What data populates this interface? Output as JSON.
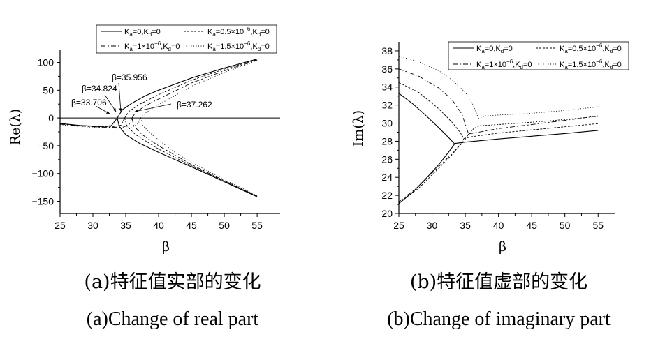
{
  "chart_data": [
    {
      "type": "line",
      "ylabel": "Re(λ)",
      "xlabel": "β",
      "xlim": [
        25,
        58.5
      ],
      "ylim": [
        -172,
        122
      ],
      "xticks": [
        "25",
        "30",
        "35",
        "40",
        "45",
        "50",
        "55"
      ],
      "yticks": [
        "100",
        "50",
        "0",
        "-50",
        "-100",
        "-150"
      ],
      "zero_line": true,
      "grid": false,
      "legend_position": "top",
      "caption_zh": "(a)特征值实部的变化",
      "caption_en": "(a)Change of real part",
      "annotations": [
        {
          "text": "β=33.706",
          "x": 33.706,
          "y": 0
        },
        {
          "text": "β=34.824",
          "x": 34.824,
          "y": 0
        },
        {
          "text": "β=35.956",
          "x": 35.956,
          "y": 0
        },
        {
          "text": "β=37.262",
          "x": 37.262,
          "y": 0
        }
      ],
      "series": [
        {
          "name": "Ka=0,Kd=0",
          "branches": [
            {
              "x": [
                25,
                28,
                31,
                32.8,
                33.706
              ],
              "y": [
                -10,
                -13.5,
                -15.5,
                -14,
                0
              ]
            },
            {
              "x": [
                33.706,
                34.5,
                36,
                38,
                40,
                45,
                50,
                55
              ],
              "y": [
                0,
                15,
                27,
                40,
                50,
                72,
                90,
                106
              ]
            },
            {
              "x": [
                33.706,
                34,
                35,
                37,
                40,
                45,
                50,
                55
              ],
              "y": [
                0,
                -15,
                -30,
                -45,
                -62,
                -88,
                -115,
                -142
              ]
            }
          ]
        },
        {
          "name": "Ka=0.5×10-6,Kd=0",
          "branches": [
            {
              "x": [
                25,
                28,
                31,
                33,
                34.3,
                34.824
              ],
              "y": [
                -10,
                -13.5,
                -15.5,
                -16,
                -13,
                0
              ]
            },
            {
              "x": [
                34.824,
                35.5,
                37,
                40,
                45,
                50,
                55
              ],
              "y": [
                0,
                12,
                24,
                42,
                68,
                88,
                105
              ]
            },
            {
              "x": [
                34.824,
                35.2,
                36.5,
                40,
                45,
                50,
                55
              ],
              "y": [
                0,
                -15,
                -30,
                -56,
                -86,
                -114,
                -141
              ]
            }
          ]
        },
        {
          "name": "Ka=1×10-6,Kd=0",
          "branches": [
            {
              "x": [
                25,
                28,
                31,
                33,
                34.5,
                35.5,
                35.956
              ],
              "y": [
                -11,
                -14.5,
                -16.5,
                -17,
                -17,
                -12,
                0
              ]
            },
            {
              "x": [
                35.956,
                36.5,
                38,
                40,
                45,
                50,
                55
              ],
              "y": [
                0,
                10,
                22,
                34,
                63,
                85,
                104
              ]
            },
            {
              "x": [
                35.956,
                36.2,
                37.5,
                40,
                45,
                50,
                55
              ],
              "y": [
                0,
                -14,
                -30,
                -50,
                -84,
                -113,
                -141
              ]
            }
          ]
        },
        {
          "name": "Ka=1.5×10-6,Kd=0",
          "branches": [
            {
              "x": [
                25,
                28,
                31,
                34,
                36,
                36.9,
                37.262
              ],
              "y": [
                -12,
                -15.5,
                -17.5,
                -18.5,
                -17,
                -10,
                0
              ]
            },
            {
              "x": [
                37.262,
                38,
                40,
                42,
                45,
                50,
                55
              ],
              "y": [
                0,
                9,
                24,
                37,
                57,
                82,
                103
              ]
            },
            {
              "x": [
                37.262,
                37.6,
                39,
                42,
                45,
                50,
                55
              ],
              "y": [
                0,
                -14,
                -30,
                -58,
                -80,
                -111,
                -140
              ]
            }
          ]
        }
      ]
    },
    {
      "type": "line",
      "ylabel": "Im(λ)",
      "xlabel": "β",
      "xlim": [
        25,
        57.5
      ],
      "ylim": [
        20,
        39
      ],
      "xticks": [
        "25",
        "30",
        "35",
        "40",
        "45",
        "50",
        "55"
      ],
      "yticks": [
        "38",
        "36",
        "34",
        "32",
        "30",
        "28",
        "26",
        "24",
        "22",
        "20"
      ],
      "grid": false,
      "legend_position": "top",
      "caption_zh": "(b)特征值虚部的变化",
      "caption_en": "(b)Change of imaginary part",
      "series": [
        {
          "name": "Ka=0,Kd=0",
          "branches": [
            {
              "x": [
                25,
                27,
                29,
                31,
                32.5,
                33.4
              ],
              "y": [
                33.3,
                32.2,
                30.9,
                29.5,
                28.4,
                27.7
              ]
            },
            {
              "x": [
                25,
                27,
                29,
                31,
                32.5,
                33.4
              ],
              "y": [
                21.1,
                22.3,
                23.8,
                25.4,
                26.8,
                27.7
              ]
            },
            {
              "x": [
                33.4,
                35,
                40,
                45,
                50,
                55
              ],
              "y": [
                27.75,
                27.9,
                28.25,
                28.55,
                28.85,
                29.2
              ]
            }
          ]
        },
        {
          "name": "Ka=0.5×10-6,Kd=0",
          "branches": [
            {
              "x": [
                25,
                28,
                31,
                33,
                34.2,
                34.8
              ],
              "y": [
                34.5,
                33.4,
                31.6,
                30.1,
                29.0,
                28.3
              ]
            },
            {
              "x": [
                25,
                28,
                31,
                33,
                34.2,
                34.8
              ],
              "y": [
                21.2,
                22.8,
                25.0,
                26.5,
                27.6,
                28.3
              ]
            },
            {
              "x": [
                34.8,
                36,
                40,
                45,
                50,
                55
              ],
              "y": [
                28.3,
                28.5,
                28.9,
                29.25,
                29.6,
                29.95
              ]
            }
          ]
        },
        {
          "name": "Ka=1×10-6,Kd=0",
          "branches": [
            {
              "x": [
                25,
                28,
                31,
                33,
                34.5,
                35.5
              ],
              "y": [
                36.0,
                35.2,
                33.9,
                32.6,
                31.0,
                28.8
              ]
            },
            {
              "x": [
                25,
                28,
                31,
                33,
                34.8,
                35.5
              ],
              "y": [
                21.3,
                23.0,
                25.2,
                26.6,
                28.0,
                28.8
              ]
            },
            {
              "x": [
                35.5,
                37,
                40,
                45,
                50,
                55
              ],
              "y": [
                28.8,
                29.0,
                29.4,
                29.85,
                30.3,
                30.8
              ]
            }
          ]
        },
        {
          "name": "Ka=1.5×10-6,Kd=0",
          "branches": [
            {
              "x": [
                25,
                28,
                31,
                33,
                35,
                36.2,
                37
              ],
              "y": [
                37.4,
                36.8,
                35.8,
                34.8,
                33.4,
                32.0,
                30.5
              ]
            },
            {
              "x": [
                37,
                38,
                40,
                45,
                50,
                55
              ],
              "y": [
                30.5,
                30.8,
                30.9,
                31.1,
                31.4,
                31.8
              ]
            }
          ]
        },
        {
          "name": "",
          "branches": [
            {
              "x": [
                35.3,
                36.2,
                37,
                40,
                45,
                50,
                55
              ],
              "y": [
                28.6,
                29.35,
                29.7,
                29.85,
                30.1,
                30.4,
                30.75
              ]
            }
          ]
        }
      ]
    }
  ]
}
